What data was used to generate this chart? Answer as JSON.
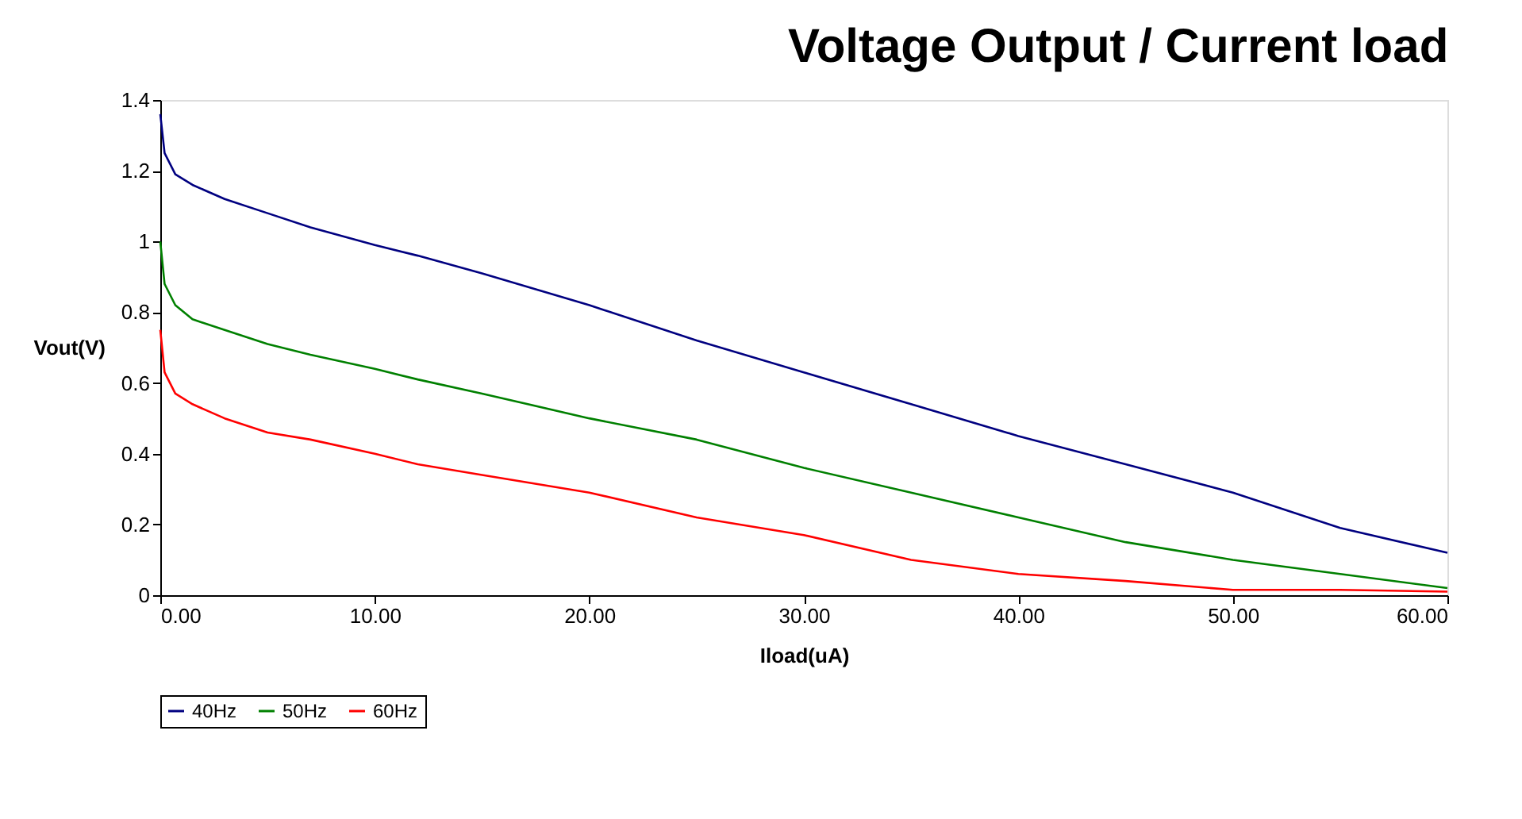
{
  "chart_data": {
    "type": "line",
    "title": "Voltage Output / Current load",
    "xlabel": "Iload(uA)",
    "ylabel": "Vout(V)",
    "x": [
      0,
      0.2,
      0.7,
      1.5,
      3,
      5,
      7,
      10,
      12,
      15,
      20,
      25,
      30,
      35,
      40,
      45,
      50,
      55,
      60
    ],
    "series": [
      {
        "name": "40Hz",
        "color": "#000080",
        "values": [
          1.36,
          1.25,
          1.19,
          1.16,
          1.12,
          1.08,
          1.04,
          0.99,
          0.96,
          0.91,
          0.82,
          0.72,
          0.63,
          0.54,
          0.45,
          0.37,
          0.29,
          0.19,
          0.12
        ]
      },
      {
        "name": "50Hz",
        "color": "#008000",
        "values": [
          1.0,
          0.88,
          0.82,
          0.78,
          0.75,
          0.71,
          0.68,
          0.64,
          0.61,
          0.57,
          0.5,
          0.44,
          0.36,
          0.29,
          0.22,
          0.15,
          0.1,
          0.06,
          0.02
        ]
      },
      {
        "name": "60Hz",
        "color": "#ff0000",
        "values": [
          0.75,
          0.63,
          0.57,
          0.54,
          0.5,
          0.46,
          0.44,
          0.4,
          0.37,
          0.34,
          0.29,
          0.22,
          0.17,
          0.1,
          0.06,
          0.04,
          0.015,
          0.015,
          0.01
        ]
      }
    ],
    "xlim": [
      0,
      60
    ],
    "xticks": [
      {
        "value": 0,
        "label": "0.00"
      },
      {
        "value": 10,
        "label": "10.00"
      },
      {
        "value": 20,
        "label": "20.00"
      },
      {
        "value": 30,
        "label": "30.00"
      },
      {
        "value": 40,
        "label": "40.00"
      },
      {
        "value": 50,
        "label": "50.00"
      },
      {
        "value": 60,
        "label": "60.00"
      }
    ],
    "ylim": [
      0,
      1.4
    ],
    "yticks": [
      0,
      0.2,
      0.4,
      0.6,
      0.8,
      1,
      1.2,
      1.4
    ],
    "grid": false,
    "legend": "bottom",
    "marker": "none",
    "line_style": "solid"
  }
}
